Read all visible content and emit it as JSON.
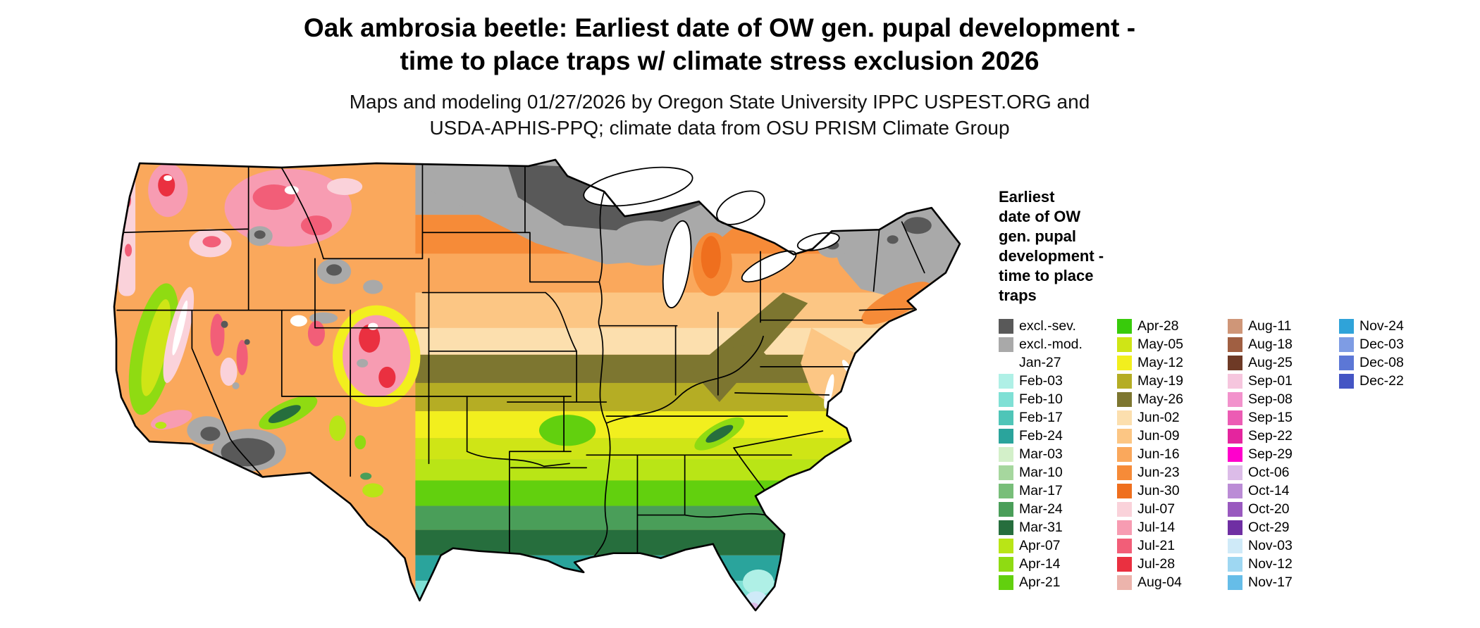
{
  "title": {
    "line1": "Oak ambrosia beetle: Earliest date of OW gen. pupal development -",
    "line2": "time to place traps w/ climate stress exclusion 2026"
  },
  "subtitle": {
    "line1": "Maps and modeling 01/27/2026 by Oregon State University IPPC USPEST.ORG and",
    "line2": "USDA-APHIS-PPQ; climate data from OSU PRISM Climate Group"
  },
  "map": {
    "region": "Contiguous United States"
  },
  "legend": {
    "title": "Earliest\ndate of OW\ngen. pupal\ndevelopment -\ntime to place\ntraps",
    "columns": [
      [
        {
          "key": "excl_sev",
          "label": "excl.-sev.",
          "color": "#595959"
        },
        {
          "key": "excl_mod",
          "label": "excl.-mod.",
          "color": "#a9a9a9"
        },
        {
          "key": "jan27",
          "label": "Jan-27",
          "color": "#ffffff"
        },
        {
          "key": "feb03",
          "label": "Feb-03",
          "color": "#aff0e6"
        },
        {
          "key": "feb10",
          "label": "Feb-10",
          "color": "#7fe0d5"
        },
        {
          "key": "feb17",
          "label": "Feb-17",
          "color": "#4fc5b8"
        },
        {
          "key": "feb24",
          "label": "Feb-24",
          "color": "#2aa49c"
        },
        {
          "key": "mar03",
          "label": "Mar-03",
          "color": "#d3f0c9"
        },
        {
          "key": "mar10",
          "label": "Mar-10",
          "color": "#a6d79e"
        },
        {
          "key": "mar17",
          "label": "Mar-17",
          "color": "#78be79"
        },
        {
          "key": "mar24",
          "label": "Mar-24",
          "color": "#4a9e59"
        },
        {
          "key": "mar31",
          "label": "Mar-31",
          "color": "#266e3d"
        },
        {
          "key": "apr07",
          "label": "Apr-07",
          "color": "#b9e516"
        },
        {
          "key": "apr14",
          "label": "Apr-14",
          "color": "#8fdb12"
        },
        {
          "key": "apr21",
          "label": "Apr-21",
          "color": "#62d00e"
        }
      ],
      [
        {
          "key": "apr28",
          "label": "Apr-28",
          "color": "#38cb0b"
        },
        {
          "key": "may05",
          "label": "May-05",
          "color": "#cfe516"
        },
        {
          "key": "may12",
          "label": "May-12",
          "color": "#f2ef1e"
        },
        {
          "key": "may19",
          "label": "May-19",
          "color": "#b5ad24"
        },
        {
          "key": "may26",
          "label": "May-26",
          "color": "#7d7630"
        },
        {
          "key": "jun02",
          "label": "Jun-02",
          "color": "#fcdfae"
        },
        {
          "key": "jun09",
          "label": "Jun-09",
          "color": "#fcc684"
        },
        {
          "key": "jun16",
          "label": "Jun-16",
          "color": "#faa85c"
        },
        {
          "key": "jun23",
          "label": "Jun-23",
          "color": "#f68b38"
        },
        {
          "key": "jun30",
          "label": "Jun-30",
          "color": "#ef6f1e"
        },
        {
          "key": "jul07",
          "label": "Jul-07",
          "color": "#fad2da"
        },
        {
          "key": "jul14",
          "label": "Jul-14",
          "color": "#f79cb2"
        },
        {
          "key": "jul21",
          "label": "Jul-21",
          "color": "#f25e78"
        },
        {
          "key": "jul28",
          "label": "Jul-28",
          "color": "#ea3040"
        },
        {
          "key": "aug04",
          "label": "Aug-04",
          "color": "#ecb4ac"
        }
      ],
      [
        {
          "key": "aug11",
          "label": "Aug-11",
          "color": "#cf9678"
        },
        {
          "key": "aug18",
          "label": "Aug-18",
          "color": "#a05f42"
        },
        {
          "key": "aug25",
          "label": "Aug-25",
          "color": "#6e3a26"
        },
        {
          "key": "sep01",
          "label": "Sep-01",
          "color": "#f6c6de"
        },
        {
          "key": "sep08",
          "label": "Sep-08",
          "color": "#f292cc"
        },
        {
          "key": "sep15",
          "label": "Sep-15",
          "color": "#ec5cb4"
        },
        {
          "key": "sep22",
          "label": "Sep-22",
          "color": "#e4259e"
        },
        {
          "key": "sep29",
          "label": "Sep-29",
          "color": "#ff00cc"
        },
        {
          "key": "oct06",
          "label": "Oct-06",
          "color": "#dcbce8"
        },
        {
          "key": "oct14",
          "label": "Oct-14",
          "color": "#bb8cd6"
        },
        {
          "key": "oct20",
          "label": "Oct-20",
          "color": "#9959bf"
        },
        {
          "key": "oct29",
          "label": "Oct-29",
          "color": "#6f2fa3"
        },
        {
          "key": "nov03",
          "label": "Nov-03",
          "color": "#cfeaf8"
        },
        {
          "key": "nov12",
          "label": "Nov-12",
          "color": "#9ed7f2"
        },
        {
          "key": "nov17",
          "label": "Nov-17",
          "color": "#66bde8"
        }
      ],
      [
        {
          "key": "nov24",
          "label": "Nov-24",
          "color": "#2fa3d9"
        },
        {
          "key": "dec03",
          "label": "Dec-03",
          "color": "#7e9ce4"
        },
        {
          "key": "dec08",
          "label": "Dec-08",
          "color": "#5c77d6"
        },
        {
          "key": "dec22",
          "label": "Dec-22",
          "color": "#4455c4"
        }
      ]
    ]
  }
}
